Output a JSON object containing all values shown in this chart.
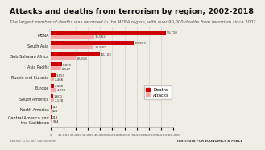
{
  "title": "Attacks and deaths from terrorism by region, 2002-2018",
  "subtitle": "The largest number of deaths was recorded in the MENA region, with over 90,000 deaths from terrorism since 2002.",
  "regions": [
    "MENA",
    "South Asia",
    "Sub-Saharan Africa",
    "Asia Pacific",
    "Russia and Eurasia",
    "Europe",
    "South America",
    "North America",
    "Central America and\nthe Caribbean"
  ],
  "deaths": [
    93710,
    67803,
    40103,
    8821,
    3559,
    2466,
    1601,
    317,
    218
  ],
  "attacks": [
    35062,
    34940,
    19813,
    8127,
    2466,
    4290,
    2128,
    421,
    964
  ],
  "deaths_color": "#cc0000",
  "attacks_color": "#f4a9a8",
  "bg_color": "#f0ece6",
  "xlim": [
    0,
    100000
  ],
  "source_text": "Source: GTD, IEP Calculations",
  "institute_text": "INSTITUTE FOR ECONOMICS & PEACE",
  "title_fontsize": 6.8,
  "subtitle_fontsize": 3.8,
  "label_fontsize": 3.5,
  "bar_label_fontsize": 2.9,
  "legend_fontsize": 3.8,
  "xtick_fontsize": 3.2
}
